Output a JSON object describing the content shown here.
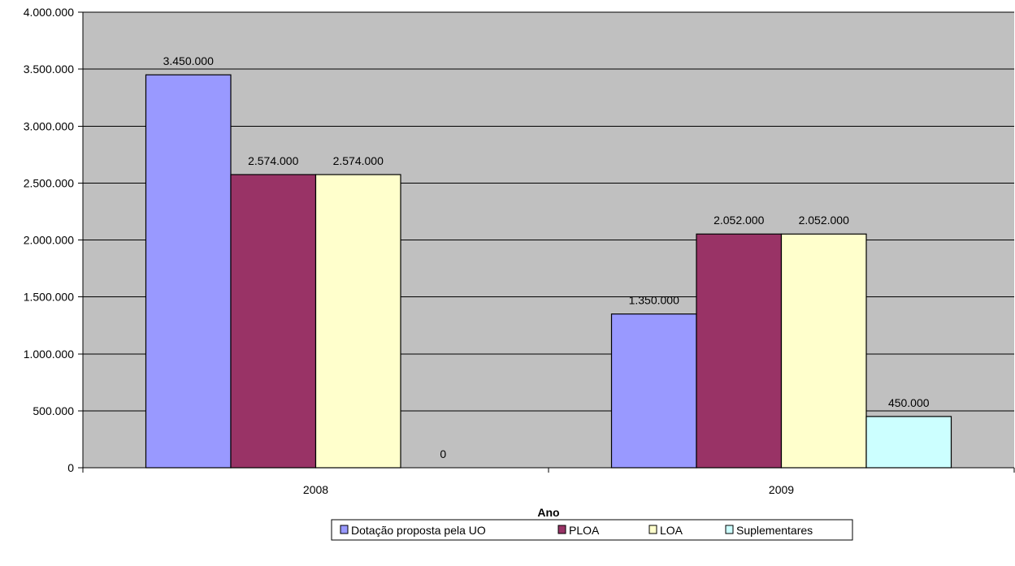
{
  "chart_data": {
    "type": "bar",
    "title": "",
    "xlabel": "Ano",
    "ylabel": "",
    "categories": [
      "2008",
      "2009"
    ],
    "ylim": [
      0,
      4000000
    ],
    "yticks": [
      0,
      500000,
      1000000,
      1500000,
      2000000,
      2500000,
      3000000,
      3500000,
      4000000
    ],
    "ytick_labels": [
      "0",
      "500.000",
      "1.000.000",
      "1.500.000",
      "2.000.000",
      "2.500.000",
      "3.000.000",
      "3.500.000",
      "4.000.000"
    ],
    "grid": true,
    "legend_position": "bottom",
    "series": [
      {
        "name": "Dotação proposta pela UO",
        "color": "#9999FF",
        "values": [
          3450000,
          1350000
        ],
        "labels": [
          "3.450.000",
          "1.350.000"
        ]
      },
      {
        "name": "PLOA",
        "color": "#993366",
        "values": [
          2574000,
          2052000
        ],
        "labels": [
          "2.574.000",
          "2.052.000"
        ]
      },
      {
        "name": "LOA",
        "color": "#FFFFCC",
        "values": [
          2574000,
          2052000
        ],
        "labels": [
          "2.574.000",
          "2.052.000"
        ]
      },
      {
        "name": "Suplementares",
        "color": "#CCFFFF",
        "values": [
          0,
          450000
        ],
        "labels": [
          "0",
          "450.000"
        ]
      }
    ],
    "plot_background": "#C0C0C0"
  }
}
